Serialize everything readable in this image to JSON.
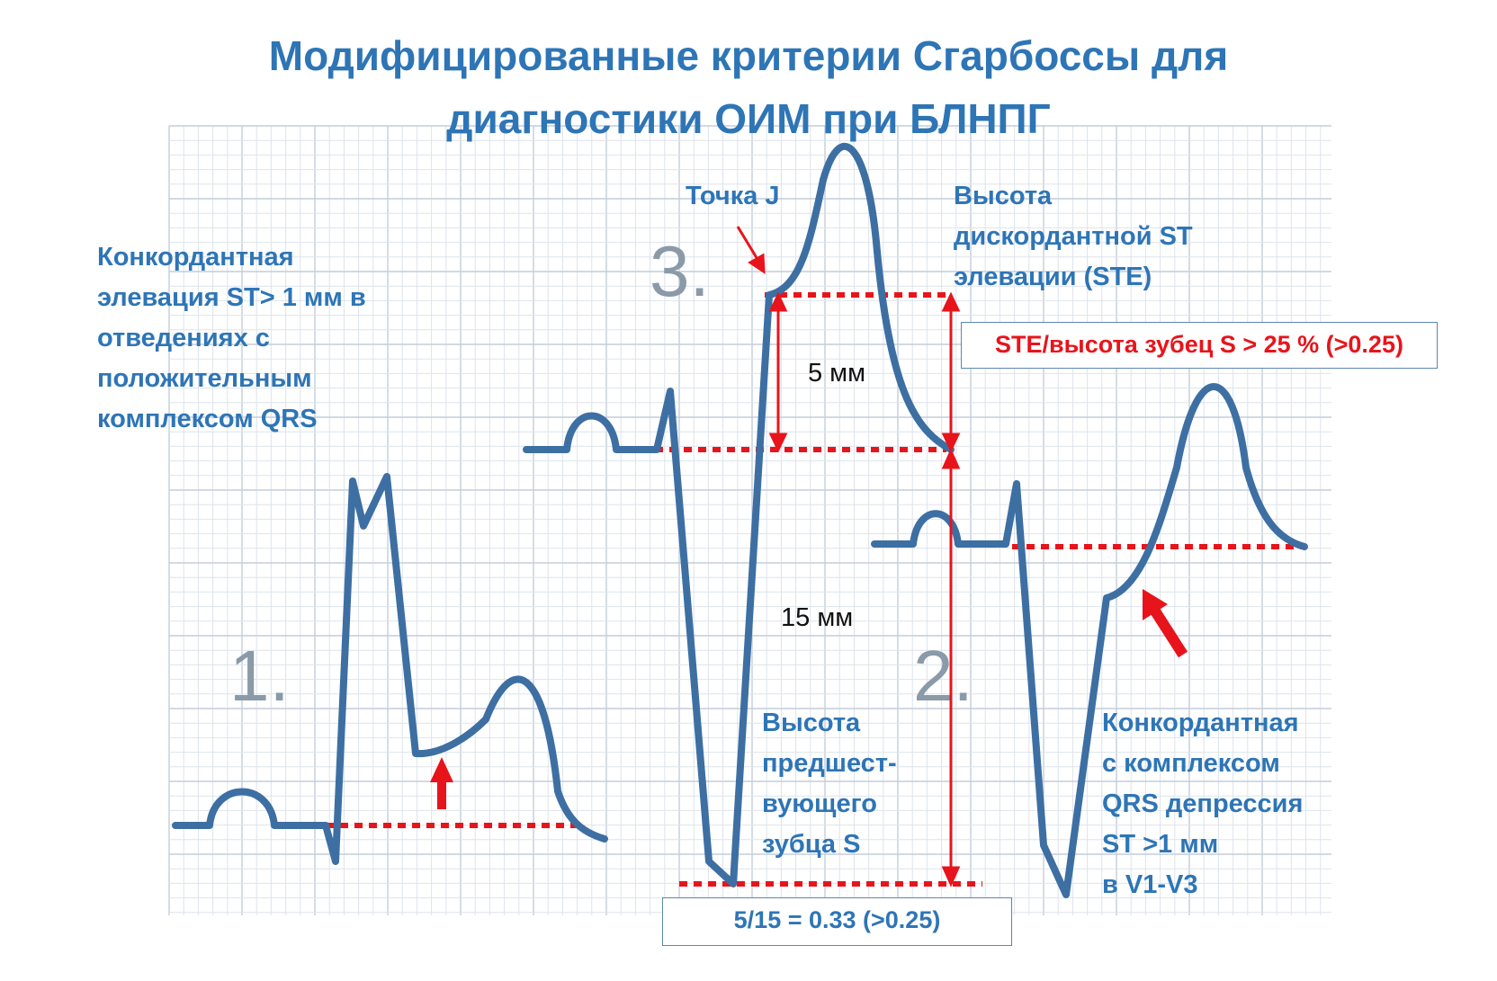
{
  "title": {
    "line1": "Модифицированные критерии Сгарбоссы для",
    "line2": "диагностики ОИМ при БЛНПГ"
  },
  "labels": {
    "concordant_elevation": [
      "Конкордантная",
      "элевация ST> 1 мм в",
      "отведениях с",
      "положительным",
      "комплексом QRS"
    ],
    "j_point": "Точка J",
    "discordant_ste": [
      "Высота",
      "дискордантной ST",
      "элевации (STE)"
    ],
    "s_wave_height": [
      "Высота",
      "предшест-",
      "вующего",
      "зубца S"
    ],
    "concordant_depression": [
      "Конкордантная",
      "с комплексом",
      "QRS депрессия",
      "ST >1 мм",
      "в V1-V3"
    ]
  },
  "numbers": {
    "n1": "1.",
    "n2": "2.",
    "n3": "3."
  },
  "measurements": {
    "ste": "5 мм",
    "s_wave": "15 мм"
  },
  "boxes": {
    "ratio_rule": "STE/высота зубец S > 25 % (>0.25)",
    "ratio_result": "5/15 =  0.33 (>0.25)"
  },
  "colors": {
    "text_blue": "#2e75b6",
    "trace": "#3d6fa3",
    "red": "#e8141b",
    "grid_minor": "#dde4ec",
    "grid_major": "#c3ceda",
    "number_gray": "#8a9aa8",
    "box_border": "#5b86b0"
  }
}
